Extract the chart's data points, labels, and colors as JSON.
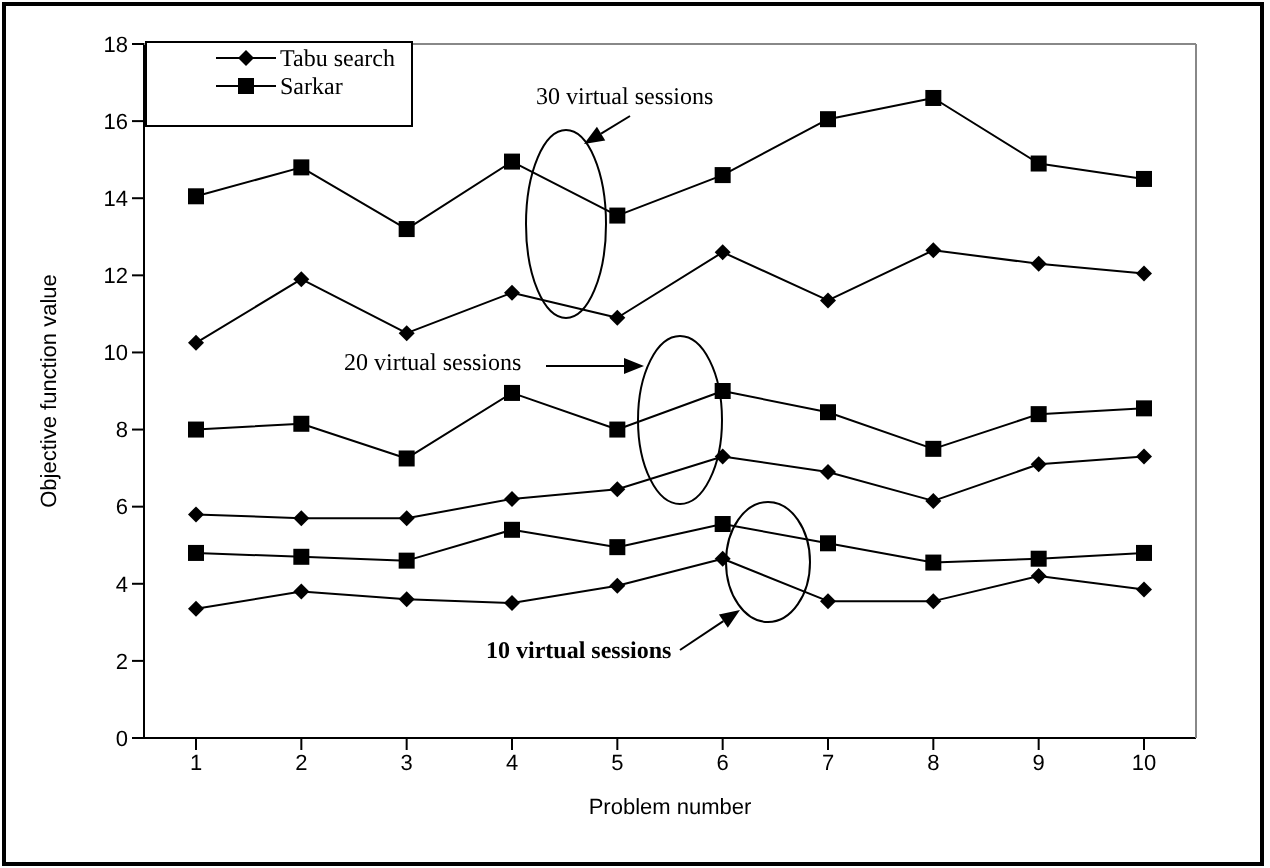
{
  "chart_data": {
    "type": "line",
    "xlabel": "Problem number",
    "ylabel": "Objective function value",
    "categories": [
      "1",
      "2",
      "3",
      "4",
      "5",
      "6",
      "7",
      "8",
      "9",
      "10"
    ],
    "series": [
      {
        "name": "Tabu search",
        "color": "#000000",
        "marker": "diamond",
        "values": [
          3.35,
          3.8,
          3.6,
          3.5,
          3.95,
          4.65,
          3.55,
          3.55,
          4.2,
          3.85
        ]
      },
      {
        "name": "Sarkar",
        "color": "#000000",
        "marker": "square",
        "values": [
          4.8,
          4.7,
          4.6,
          5.4,
          4.95,
          5.55,
          5.05,
          4.55,
          4.65,
          4.8
        ]
      },
      {
        "color": "#000000",
        "marker": "diamond",
        "values": [
          5.8,
          5.7,
          5.7,
          6.2,
          6.45,
          7.3,
          6.9,
          6.15,
          7.1,
          7.3
        ]
      },
      {
        "color": "#000000",
        "marker": "square",
        "values": [
          8.0,
          8.15,
          7.25,
          8.95,
          8.0,
          9.0,
          8.45,
          7.5,
          8.4,
          8.55
        ]
      },
      {
        "color": "#000000",
        "marker": "diamond",
        "values": [
          10.25,
          11.9,
          10.5,
          11.55,
          10.9,
          12.6,
          11.35,
          12.65,
          12.3,
          12.05
        ]
      },
      {
        "color": "#000000",
        "marker": "square",
        "values": [
          14.05,
          14.8,
          13.2,
          14.95,
          13.55,
          14.6,
          16.05,
          16.6,
          14.9,
          14.5
        ]
      }
    ],
    "ylim": [
      0,
      18
    ],
    "yticks": [
      0,
      2,
      4,
      6,
      8,
      10,
      12,
      14,
      16,
      18
    ],
    "grid": false,
    "legend": "top left",
    "line_style": "solid",
    "annotations": [
      "30 virtual sessions",
      "20 virtual sessions",
      "10 virtual sessions"
    ]
  }
}
